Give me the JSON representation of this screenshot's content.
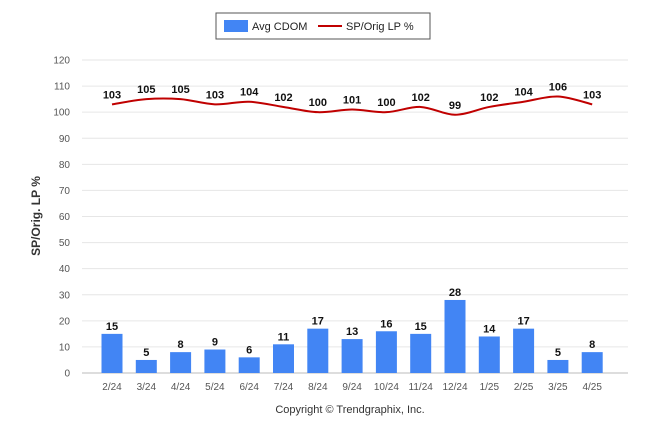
{
  "chart_data": {
    "type": "bar",
    "title": "",
    "xlabel": "",
    "ylabel": "SP/Orig. LP %",
    "ylim": [
      0,
      120
    ],
    "yticks": [
      0,
      10,
      20,
      30,
      40,
      50,
      60,
      70,
      80,
      90,
      100,
      110,
      120
    ],
    "grid": true,
    "legend_position": "top-center",
    "categories": [
      "2/24",
      "3/24",
      "4/24",
      "5/24",
      "6/24",
      "7/24",
      "8/24",
      "9/24",
      "10/24",
      "11/24",
      "12/24",
      "1/25",
      "2/25",
      "3/25",
      "4/25"
    ],
    "series": [
      {
        "name": "Avg CDOM",
        "type": "bar",
        "color": "#4285f4",
        "values": [
          15,
          5,
          8,
          9,
          6,
          11,
          17,
          13,
          16,
          15,
          28,
          14,
          17,
          5,
          8
        ]
      },
      {
        "name": "SP/Orig LP %",
        "type": "line",
        "color": "#c00000",
        "values": [
          103,
          105,
          105,
          103,
          104,
          102,
          100,
          101,
          100,
          102,
          99,
          102,
          104,
          106,
          103
        ]
      }
    ]
  },
  "footer": {
    "copyright": "Copyright © Trendgraphix, Inc."
  }
}
